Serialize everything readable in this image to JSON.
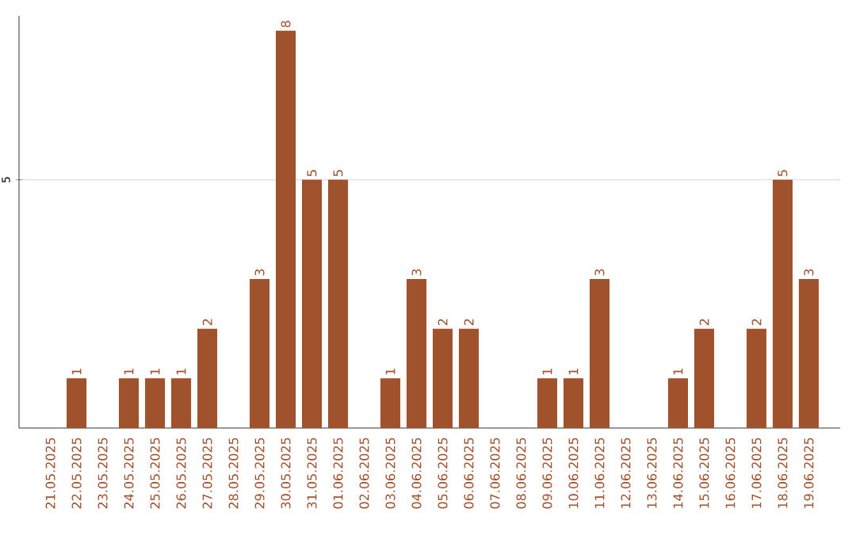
{
  "chart_data": {
    "type": "bar",
    "categories": [
      "21.05.2025",
      "22.05.2025",
      "23.05.2025",
      "24.05.2025",
      "25.05.2025",
      "26.05.2025",
      "27.05.2025",
      "28.05.2025",
      "29.05.2025",
      "30.05.2025",
      "31.05.2025",
      "01.06.2025",
      "02.06.2025",
      "03.06.2025",
      "04.06.2025",
      "05.06.2025",
      "06.06.2025",
      "07.06.2025",
      "08.06.2025",
      "09.06.2025",
      "10.06.2025",
      "11.06.2025",
      "12.06.2025",
      "13.06.2025",
      "14.06.2025",
      "15.06.2025",
      "16.06.2025",
      "17.06.2025",
      "18.06.2025",
      "19.06.2025"
    ],
    "values": [
      0,
      1,
      0,
      1,
      1,
      1,
      2,
      0,
      3,
      8,
      5,
      5,
      0,
      1,
      3,
      2,
      2,
      0,
      0,
      1,
      1,
      3,
      0,
      0,
      1,
      2,
      0,
      2,
      5,
      3
    ],
    "value_labels": [
      null,
      "1",
      null,
      "1",
      "1",
      "1",
      "2",
      null,
      "3",
      "8",
      "5",
      "5",
      null,
      "1",
      "3",
      "2",
      "2",
      null,
      null,
      "1",
      "1",
      "3",
      null,
      null,
      "1",
      "2",
      null,
      "2",
      "5",
      "3"
    ],
    "color": "#a0522d",
    "ylim": [
      0,
      8.3
    ],
    "yticks": [
      5
    ],
    "grid": "y"
  }
}
